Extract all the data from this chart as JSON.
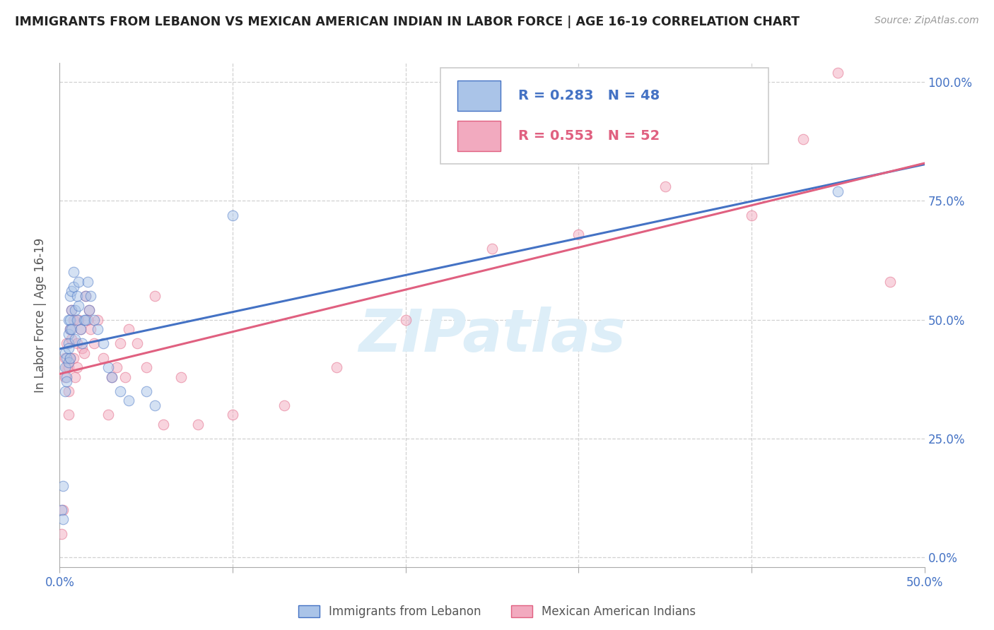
{
  "title": "IMMIGRANTS FROM LEBANON VS MEXICAN AMERICAN INDIAN IN LABOR FORCE | AGE 16-19 CORRELATION CHART",
  "source": "Source: ZipAtlas.com",
  "ylabel_label": "In Labor Force | Age 16-19",
  "legend_label1": "Immigrants from Lebanon",
  "legend_label2": "Mexican American Indians",
  "R1": 0.283,
  "N1": 48,
  "R2": 0.553,
  "N2": 52,
  "color1": "#aac4e8",
  "color2": "#f2aabf",
  "line_color1": "#4472c4",
  "line_color2": "#e06080",
  "axis_color": "#4472c4",
  "title_color": "#222222",
  "source_color": "#999999",
  "watermark": "ZIPatlas",
  "watermark_color": "#ddeef8",
  "xmin": 0.0,
  "xmax": 0.5,
  "ymin": 0.0,
  "ymax": 1.0,
  "background_color": "#ffffff",
  "grid_color": "#cccccc",
  "marker_size": 110,
  "marker_alpha": 0.5,
  "line_width": 2.2,
  "blue_x": [
    0.001,
    0.002,
    0.002,
    0.003,
    0.003,
    0.003,
    0.004,
    0.004,
    0.004,
    0.005,
    0.005,
    0.005,
    0.005,
    0.005,
    0.006,
    0.006,
    0.006,
    0.006,
    0.007,
    0.007,
    0.007,
    0.008,
    0.008,
    0.009,
    0.009,
    0.01,
    0.01,
    0.011,
    0.011,
    0.012,
    0.013,
    0.014,
    0.015,
    0.015,
    0.016,
    0.017,
    0.018,
    0.02,
    0.022,
    0.025,
    0.028,
    0.03,
    0.035,
    0.04,
    0.05,
    0.055,
    0.1,
    0.45
  ],
  "blue_y": [
    0.1,
    0.15,
    0.08,
    0.4,
    0.35,
    0.43,
    0.38,
    0.42,
    0.37,
    0.47,
    0.45,
    0.5,
    0.44,
    0.41,
    0.55,
    0.5,
    0.48,
    0.42,
    0.56,
    0.52,
    0.48,
    0.6,
    0.57,
    0.52,
    0.46,
    0.55,
    0.5,
    0.58,
    0.53,
    0.48,
    0.45,
    0.5,
    0.55,
    0.5,
    0.58,
    0.52,
    0.55,
    0.5,
    0.48,
    0.45,
    0.4,
    0.38,
    0.35,
    0.33,
    0.35,
    0.32,
    0.72,
    0.77
  ],
  "pink_x": [
    0.001,
    0.002,
    0.003,
    0.003,
    0.004,
    0.004,
    0.005,
    0.005,
    0.005,
    0.006,
    0.006,
    0.007,
    0.007,
    0.008,
    0.008,
    0.009,
    0.01,
    0.01,
    0.011,
    0.012,
    0.013,
    0.014,
    0.015,
    0.016,
    0.017,
    0.018,
    0.02,
    0.022,
    0.025,
    0.028,
    0.03,
    0.033,
    0.035,
    0.038,
    0.04,
    0.045,
    0.05,
    0.055,
    0.06,
    0.07,
    0.08,
    0.1,
    0.13,
    0.16,
    0.2,
    0.25,
    0.3,
    0.35,
    0.4,
    0.43,
    0.45,
    0.48
  ],
  "pink_y": [
    0.05,
    0.1,
    0.38,
    0.42,
    0.45,
    0.4,
    0.35,
    0.4,
    0.3,
    0.48,
    0.42,
    0.46,
    0.52,
    0.5,
    0.42,
    0.38,
    0.45,
    0.4,
    0.5,
    0.48,
    0.44,
    0.43,
    0.55,
    0.5,
    0.52,
    0.48,
    0.45,
    0.5,
    0.42,
    0.3,
    0.38,
    0.4,
    0.45,
    0.38,
    0.48,
    0.45,
    0.4,
    0.55,
    0.28,
    0.38,
    0.28,
    0.3,
    0.32,
    0.4,
    0.5,
    0.65,
    0.68,
    0.78,
    0.72,
    0.88,
    1.02,
    0.58
  ]
}
